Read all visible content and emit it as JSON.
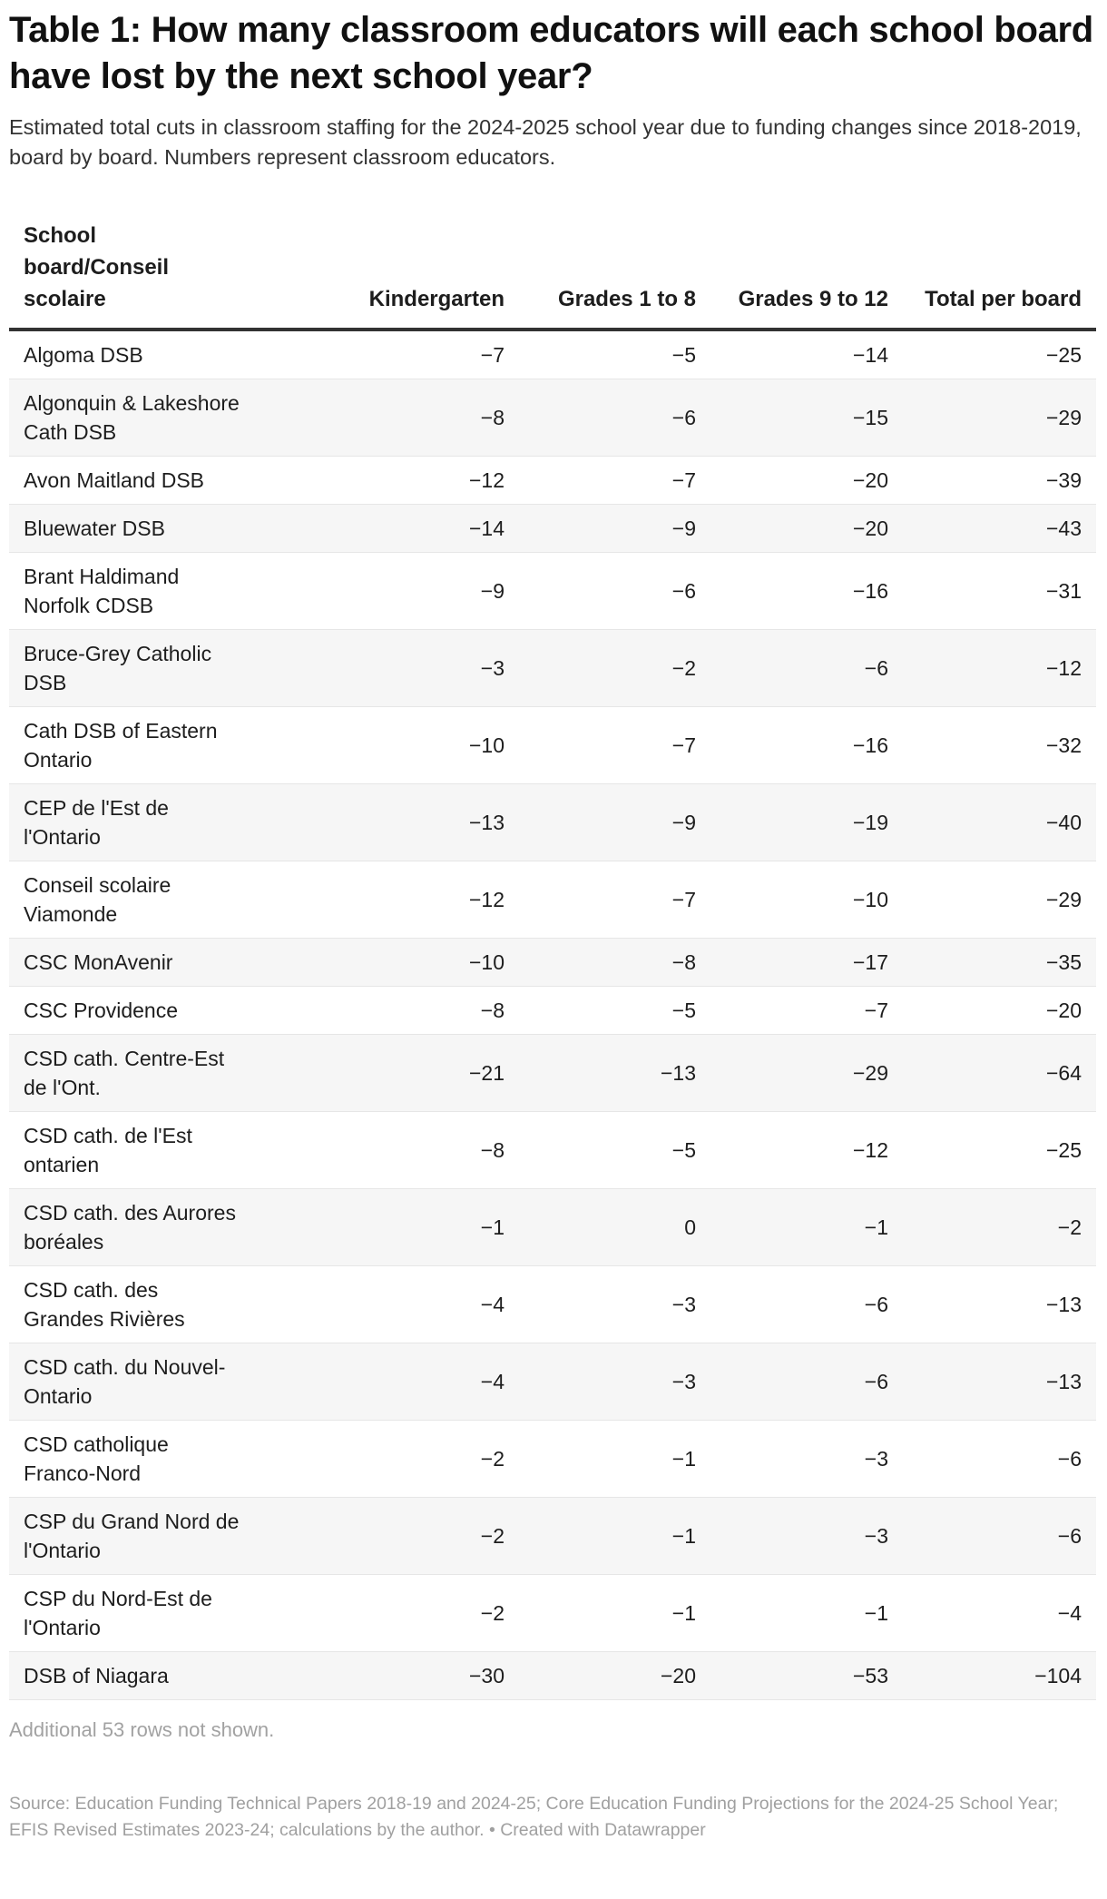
{
  "title": "Table 1: How many classroom educators will each school board have lost by the next school year?",
  "subtitle": "Estimated total cuts in classroom staffing for the 2024-2025 school year due to funding changes since 2018-2019, board by board. Numbers represent classroom educators.",
  "columns": [
    "School board/Conseil scolaire",
    "Kindergarten",
    "Grades 1 to 8",
    "Grades 9 to 12",
    "Total per board"
  ],
  "rows": [
    [
      "Algoma DSB",
      "−7",
      "−5",
      "−14",
      "−25"
    ],
    [
      "Algonquin & Lakeshore Cath DSB",
      "−8",
      "−6",
      "−15",
      "−29"
    ],
    [
      "Avon Maitland DSB",
      "−12",
      "−7",
      "−20",
      "−39"
    ],
    [
      "Bluewater DSB",
      "−14",
      "−9",
      "−20",
      "−43"
    ],
    [
      "Brant Haldimand Norfolk CDSB",
      "−9",
      "−6",
      "−16",
      "−31"
    ],
    [
      "Bruce-Grey Catholic DSB",
      "−3",
      "−2",
      "−6",
      "−12"
    ],
    [
      "Cath DSB of Eastern Ontario",
      "−10",
      "−7",
      "−16",
      "−32"
    ],
    [
      "CEP de l'Est de l'Ontario",
      "−13",
      "−9",
      "−19",
      "−40"
    ],
    [
      "Conseil scolaire Viamonde",
      "−12",
      "−7",
      "−10",
      "−29"
    ],
    [
      "CSC MonAvenir",
      "−10",
      "−8",
      "−17",
      "−35"
    ],
    [
      "CSC Providence",
      "−8",
      "−5",
      "−7",
      "−20"
    ],
    [
      "CSD cath. Centre-Est de l'Ont.",
      "−21",
      "−13",
      "−29",
      "−64"
    ],
    [
      "CSD cath. de l'Est ontarien",
      "−8",
      "−5",
      "−12",
      "−25"
    ],
    [
      "CSD cath. des Aurores boréales",
      "−1",
      "0",
      "−1",
      "−2"
    ],
    [
      "CSD cath. des Grandes Rivières",
      "−4",
      "−3",
      "−6",
      "−13"
    ],
    [
      "CSD cath. du Nouvel-Ontario",
      "−4",
      "−3",
      "−6",
      "−13"
    ],
    [
      "CSD catholique Franco-Nord",
      "−2",
      "−1",
      "−3",
      "−6"
    ],
    [
      "CSP du Grand Nord de l'Ontario",
      "−2",
      "−1",
      "−3",
      "−6"
    ],
    [
      "CSP du Nord-Est de l'Ontario",
      "−2",
      "−1",
      "−1",
      "−4"
    ],
    [
      "DSB of Niagara",
      "−30",
      "−20",
      "−53",
      "−104"
    ]
  ],
  "note": "Additional 53 rows not shown.",
  "source": "Source: Education Funding Technical Papers 2018-19 and 2024-25; Core Education Funding Projections for the 2024-25 School Year; EFIS Revised Estimates 2023-24; calculations by the author. • Created with Datawrapper"
}
